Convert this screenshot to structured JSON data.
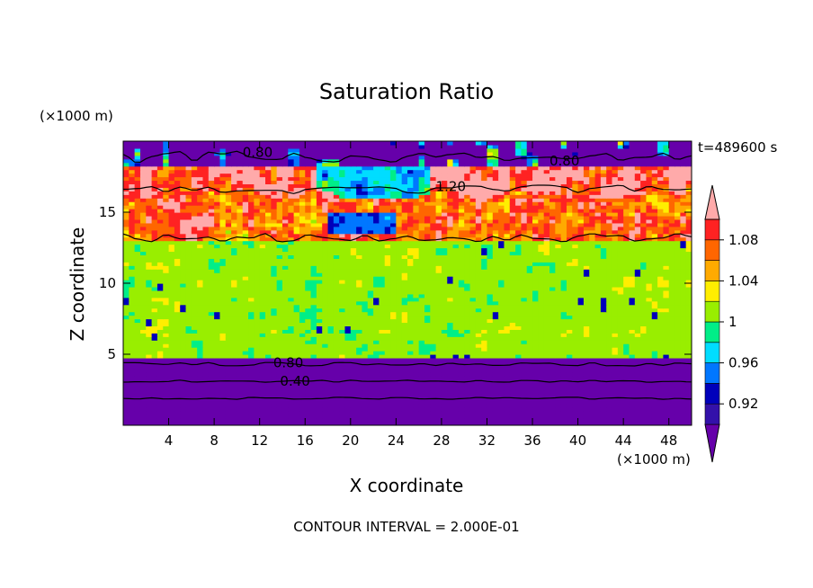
{
  "chart_data": {
    "type": "heatmap",
    "title": "Saturation Ratio",
    "xlabel": "X coordinate",
    "ylabel": "Z coordinate",
    "x_unit": "(×1000 m)",
    "y_unit": "(×1000 m)",
    "time_label": "t=489600 s",
    "footer": "CONTOUR INTERVAL = 2.000E-01",
    "xlim": [
      0,
      50
    ],
    "ylim": [
      0,
      20
    ],
    "x_ticks": [
      4,
      8,
      12,
      16,
      20,
      24,
      28,
      32,
      36,
      40,
      44,
      48
    ],
    "y_ticks": [
      5,
      10,
      15
    ],
    "colorbar": {
      "bounds": [
        0.9,
        0.92,
        0.94,
        0.96,
        0.98,
        1.0,
        1.02,
        1.04,
        1.06,
        1.08,
        1.1
      ],
      "colors": [
        "#6600aa",
        "#3311aa",
        "#0000bb",
        "#0077ff",
        "#00ddff",
        "#00ee88",
        "#99ee00",
        "#ffee00",
        "#ffaa00",
        "#ff6600",
        "#ff2222",
        "#ffaaaa"
      ],
      "labels": [
        "0.92",
        "0.96",
        "1",
        "1.04",
        "1.08"
      ],
      "label_values": [
        0.92,
        0.96,
        1.0,
        1.04,
        1.08
      ],
      "extend": "both"
    },
    "contour_labels": [
      {
        "text": "0.80",
        "x": 10.5,
        "z": 19.2
      },
      {
        "text": "0.80",
        "x": 37.5,
        "z": 18.6
      },
      {
        "text": "1.20",
        "x": 27.5,
        "z": 16.8
      },
      {
        "text": "0.80",
        "x": 13.2,
        "z": 4.4
      },
      {
        "text": "0.40",
        "x": 13.8,
        "z": 3.1
      }
    ],
    "contour_interval": 0.2
  }
}
